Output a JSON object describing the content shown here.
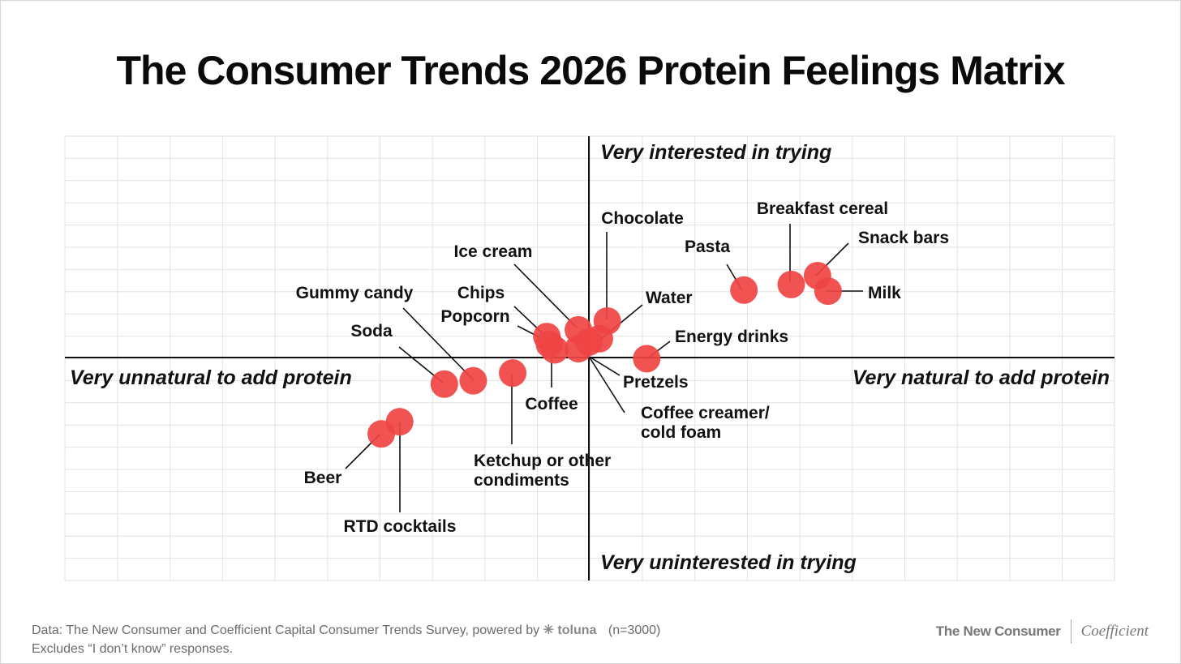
{
  "title": "The Consumer Trends 2026 Protein Feelings Matrix",
  "chart_data": {
    "type": "scatter",
    "title": "The Consumer Trends 2026 Protein Feelings Matrix",
    "x_axis": {
      "negative_label": "Very unnatural to add protein",
      "positive_label": "Very natural to add protein",
      "range": [
        -10,
        10
      ]
    },
    "y_axis": {
      "positive_label": "Very interested in trying",
      "negative_label": "Very uninterested in trying",
      "range": [
        -10,
        10
      ]
    },
    "grid": true,
    "point_color": "#f04444",
    "points": [
      {
        "label": "Breakfast cereal",
        "x": 3.85,
        "y": 3.3
      },
      {
        "label": "Snack bars",
        "x": 4.35,
        "y": 3.7
      },
      {
        "label": "Milk",
        "x": 4.55,
        "y": 3.0
      },
      {
        "label": "Pasta",
        "x": 2.95,
        "y": 3.05
      },
      {
        "label": "Chocolate",
        "x": 0.35,
        "y": 1.65
      },
      {
        "label": "Water",
        "x": 0.2,
        "y": 0.85
      },
      {
        "label": "Ice cream",
        "x": -0.2,
        "y": 1.25
      },
      {
        "label": "Energy drinks",
        "x": 1.1,
        "y": -0.05
      },
      {
        "label": "Pretzels",
        "x": -0.2,
        "y": 0.4
      },
      {
        "label": "Coffee creamer/ cold foam",
        "x": 0.0,
        "y": 0.7
      },
      {
        "label": "Chips",
        "x": -0.8,
        "y": 0.95
      },
      {
        "label": "Popcorn",
        "x": -0.75,
        "y": 0.6
      },
      {
        "label": "Coffee",
        "x": -0.65,
        "y": 0.35
      },
      {
        "label": "Ketchup or other condiments",
        "x": -1.45,
        "y": -0.7
      },
      {
        "label": "Gummy candy",
        "x": -2.2,
        "y": -1.05
      },
      {
        "label": "Soda",
        "x": -2.75,
        "y": -1.2
      },
      {
        "label": "Beer",
        "x": -3.95,
        "y": -3.45
      },
      {
        "label": "RTD cocktails",
        "x": -3.6,
        "y": -2.9
      }
    ]
  },
  "footer": {
    "source_prefix": "Data: The New Consumer and Coefficient Capital Consumer Trends Survey, powered by",
    "powered_by": "toluna",
    "sample": "(n=3000)",
    "note": "Excludes “I don’t know” responses."
  },
  "logos": {
    "left": "The New Consumer",
    "right": "Coefficient"
  }
}
